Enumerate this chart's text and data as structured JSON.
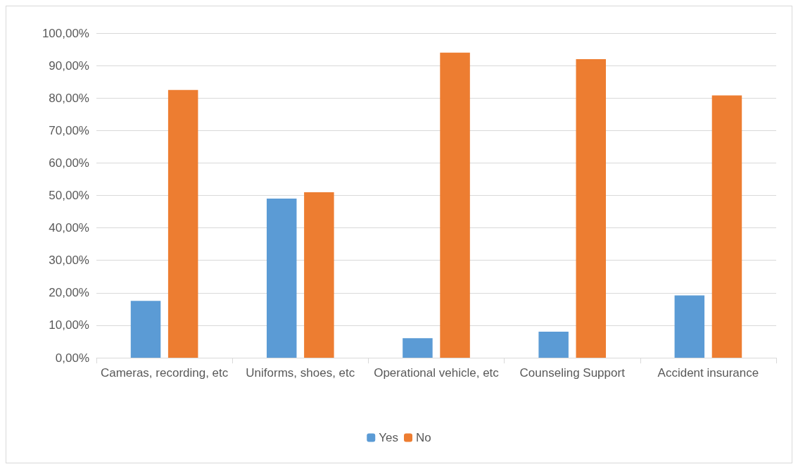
{
  "chart_data": {
    "type": "bar",
    "categories": [
      "Cameras, recording, etc",
      "Uniforms, shoes, etc",
      "Operational vehicle, etc",
      "Counseling Support",
      "Accident insurance"
    ],
    "series": [
      {
        "name": "Yes",
        "color": "#5b9bd5",
        "values": [
          17.5,
          49,
          6,
          8,
          19.2
        ]
      },
      {
        "name": "No",
        "color": "#ed7d31",
        "values": [
          82.5,
          51,
          94,
          92,
          80.8
        ]
      }
    ],
    "ylim": [
      0,
      100
    ],
    "yticks": [
      {
        "value": 0,
        "label": "0,00%"
      },
      {
        "value": 10,
        "label": "10,00%"
      },
      {
        "value": 20,
        "label": "20,00%"
      },
      {
        "value": 30,
        "label": "30,00%"
      },
      {
        "value": 40,
        "label": "40,00%"
      },
      {
        "value": 50,
        "label": "50,00%"
      },
      {
        "value": 60,
        "label": "60,00%"
      },
      {
        "value": 70,
        "label": "70,00%"
      },
      {
        "value": 80,
        "label": "80,00%"
      },
      {
        "value": 90,
        "label": "90,00%"
      },
      {
        "value": 100,
        "label": "100,00%"
      }
    ],
    "grid": "y",
    "legend": "bottom"
  }
}
